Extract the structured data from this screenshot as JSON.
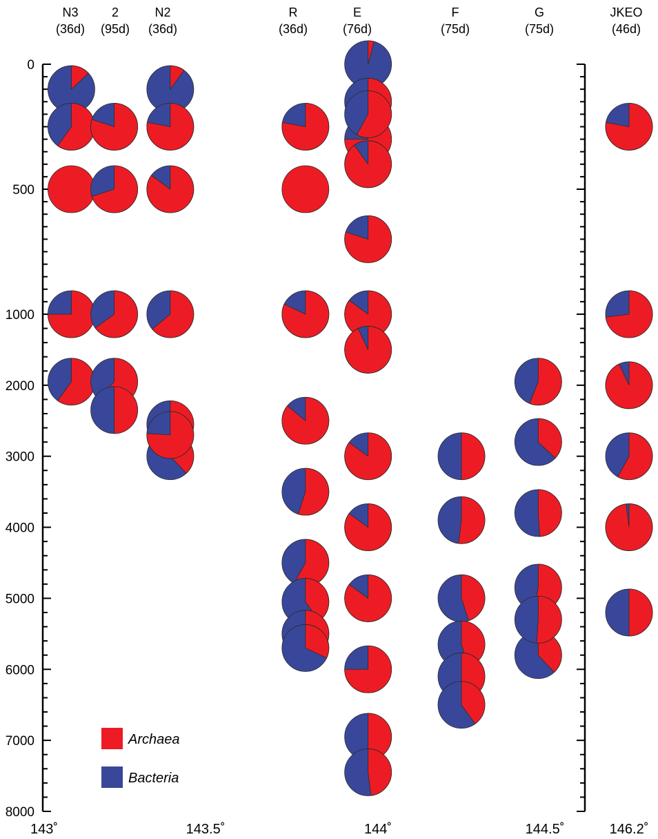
{
  "colors": {
    "archaea": "#ED1C24",
    "bacteria": "#39479A",
    "outline": "#2a2a2a"
  },
  "chart_data": {
    "type": "pie-depth-profile",
    "title": "",
    "ylabel": "",
    "xlabel": "",
    "yaxis": {
      "ticks": [
        {
          "label": "0",
          "value": 0
        },
        {
          "label": "500",
          "value": 500
        },
        {
          "label": "1000",
          "value": 1000
        },
        {
          "label": "2000",
          "value": 2000
        },
        {
          "label": "3000",
          "value": 3000
        },
        {
          "label": "4000",
          "value": 4000
        },
        {
          "label": "5000",
          "value": 5000
        },
        {
          "label": "6000",
          "value": 6000
        },
        {
          "label": "7000",
          "value": 7000
        },
        {
          "label": "8000",
          "value": 8000
        }
      ]
    },
    "xaxis": {
      "ticks": [
        {
          "label": "143˚"
        },
        {
          "label": "143.5˚"
        },
        {
          "label": "144˚"
        },
        {
          "label": "144.5˚"
        },
        {
          "label": "146.2˚"
        }
      ]
    },
    "legend": {
      "position": "bottom-left",
      "entries": [
        {
          "name": "Archaea",
          "color": "#ED1C24"
        },
        {
          "name": "Bacteria",
          "color": "#39479A"
        }
      ]
    },
    "stations": [
      {
        "name": "N3",
        "days": "(36d)",
        "lon": 143.07,
        "samples": [
          {
            "depth": 100,
            "archaea_pct": 13
          },
          {
            "depth": 250,
            "archaea_pct": 60
          },
          {
            "depth": 500,
            "archaea_pct": 100
          },
          {
            "depth": 1000,
            "archaea_pct": 75
          },
          {
            "depth": 1950,
            "archaea_pct": 60
          }
        ]
      },
      {
        "name": "2",
        "days": "(95d)",
        "lon": 143.2,
        "samples": [
          {
            "depth": 250,
            "archaea_pct": 80
          },
          {
            "depth": 500,
            "archaea_pct": 70
          },
          {
            "depth": 1000,
            "archaea_pct": 65
          },
          {
            "depth": 1950,
            "archaea_pct": 62
          },
          {
            "depth": 2350,
            "archaea_pct": 50
          }
        ]
      },
      {
        "name": "N2",
        "days": "(36d)",
        "lon": 143.37,
        "samples": [
          {
            "depth": 100,
            "archaea_pct": 10
          },
          {
            "depth": 250,
            "archaea_pct": 78
          },
          {
            "depth": 500,
            "archaea_pct": 85
          },
          {
            "depth": 1000,
            "archaea_pct": 64
          },
          {
            "depth": 2550,
            "archaea_pct": 50
          },
          {
            "depth": 3000,
            "archaea_pct": 38
          },
          {
            "depth": 2700,
            "archaea_pct": 76
          }
        ]
      },
      {
        "name": "R",
        "days": "(36d)",
        "lon": 143.78,
        "samples": [
          {
            "depth": 250,
            "archaea_pct": 78
          },
          {
            "depth": 500,
            "archaea_pct": 100
          },
          {
            "depth": 1000,
            "archaea_pct": 82
          },
          {
            "depth": 2500,
            "archaea_pct": 86
          },
          {
            "depth": 3500,
            "archaea_pct": 55
          },
          {
            "depth": 4500,
            "archaea_pct": 58
          },
          {
            "depth": 5050,
            "archaea_pct": 40
          },
          {
            "depth": 5500,
            "archaea_pct": 50
          },
          {
            "depth": 5700,
            "archaea_pct": 32
          }
        ]
      },
      {
        "name": "E",
        "days": "(76d)",
        "lon": 143.97,
        "samples": [
          {
            "depth": 0,
            "archaea_pct": 4
          },
          {
            "depth": 150,
            "archaea_pct": 70
          },
          {
            "depth": 300,
            "archaea_pct": 75
          },
          {
            "depth": 200,
            "archaea_pct": 58
          },
          {
            "depth": 400,
            "archaea_pct": 90
          },
          {
            "depth": 700,
            "archaea_pct": 80
          },
          {
            "depth": 1000,
            "archaea_pct": 85
          },
          {
            "depth": 1500,
            "archaea_pct": 93
          },
          {
            "depth": 3000,
            "archaea_pct": 85
          },
          {
            "depth": 4000,
            "archaea_pct": 85
          },
          {
            "depth": 5000,
            "archaea_pct": 85
          },
          {
            "depth": 6000,
            "archaea_pct": 75
          },
          {
            "depth": 6950,
            "archaea_pct": 50
          },
          {
            "depth": 7450,
            "archaea_pct": 48
          }
        ]
      },
      {
        "name": "F",
        "days": "(75d)",
        "lon": 144.25,
        "samples": [
          {
            "depth": 3000,
            "archaea_pct": 50
          },
          {
            "depth": 3900,
            "archaea_pct": 52
          },
          {
            "depth": 5000,
            "archaea_pct": 45
          },
          {
            "depth": 5650,
            "archaea_pct": 45
          },
          {
            "depth": 6100,
            "archaea_pct": 50
          },
          {
            "depth": 6500,
            "archaea_pct": 40
          }
        ]
      },
      {
        "name": "G",
        "days": "(75d)",
        "lon": 144.48,
        "samples": [
          {
            "depth": 1950,
            "archaea_pct": 56
          },
          {
            "depth": 2800,
            "archaea_pct": 37
          },
          {
            "depth": 3800,
            "archaea_pct": 49
          },
          {
            "depth": 4850,
            "archaea_pct": 53
          },
          {
            "depth": 5800,
            "archaea_pct": 38
          },
          {
            "depth": 5300,
            "archaea_pct": 51
          }
        ]
      },
      {
        "name": "JKEO",
        "days": "(46d)",
        "lon": 146.2,
        "samples": [
          {
            "depth": 250,
            "archaea_pct": 78
          },
          {
            "depth": 1000,
            "archaea_pct": 73
          },
          {
            "depth": 2000,
            "archaea_pct": 93
          },
          {
            "depth": 3000,
            "archaea_pct": 58
          },
          {
            "depth": 4000,
            "archaea_pct": 98
          },
          {
            "depth": 5200,
            "archaea_pct": 50
          }
        ]
      }
    ]
  }
}
